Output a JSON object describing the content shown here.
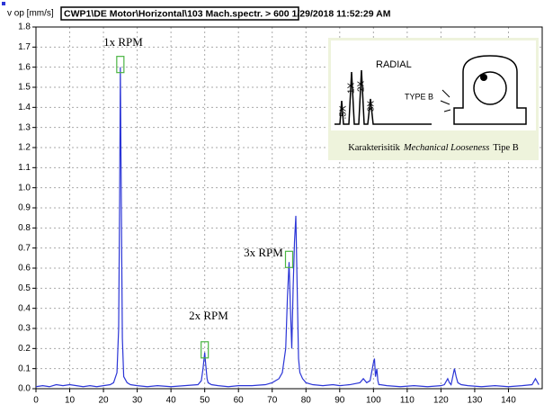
{
  "chart_data": {
    "type": "line",
    "title": "CWP1\\DE Motor\\Horizontal\\103 Mach.spectr. > 600 1/29/2018 11:52:29 AM",
    "ylabel": "v op [mm/s]",
    "color": "#2b35d6",
    "grid": true,
    "xlim": [
      0,
      150
    ],
    "ylim": [
      0,
      1.8
    ],
    "xticks": [
      0,
      10,
      20,
      30,
      40,
      50,
      60,
      70,
      80,
      90,
      100,
      110,
      120,
      130,
      140
    ],
    "yticks": [
      {
        "value": 0,
        "label": "0.0"
      },
      0.1,
      0.2,
      0.3,
      0.4,
      0.5,
      0.6,
      0.7,
      0.8,
      0.9,
      {
        "value": 1,
        "label": "1.0"
      },
      1.1,
      1.2,
      1.3,
      1.4,
      1.5,
      1.6,
      1.7,
      1.8
    ],
    "x": [
      0,
      2,
      4,
      6,
      8,
      10,
      12,
      14,
      16,
      18,
      20,
      22,
      23,
      24,
      24.5,
      24.8,
      25,
      25.3,
      25.6,
      26,
      27,
      28,
      30,
      33,
      36,
      40,
      44,
      48,
      49,
      49.5,
      50,
      50.3,
      50.7,
      51,
      52,
      54,
      57,
      60,
      64,
      68,
      70,
      72,
      73,
      74,
      74.5,
      75,
      75.4,
      75.8,
      76.2,
      76.6,
      77,
      77.4,
      77.8,
      78.2,
      79,
      80,
      82,
      85,
      88,
      90,
      93,
      96,
      97,
      98,
      99,
      100,
      100.3,
      100.6,
      101,
      101.3,
      101.6,
      102,
      104,
      108,
      112,
      116,
      120,
      121,
      122,
      122.5,
      123,
      124,
      124.5,
      125,
      126,
      128,
      132,
      136,
      140,
      144,
      147,
      148,
      149
    ],
    "values": [
      0.01,
      0.015,
      0.01,
      0.02,
      0.015,
      0.02,
      0.015,
      0.01,
      0.015,
      0.01,
      0.015,
      0.02,
      0.03,
      0.08,
      0.3,
      0.95,
      1.6,
      0.9,
      0.25,
      0.06,
      0.03,
      0.02,
      0.015,
      0.01,
      0.015,
      0.01,
      0.015,
      0.02,
      0.04,
      0.1,
      0.18,
      0.12,
      0.05,
      0.03,
      0.02,
      0.015,
      0.01,
      0.015,
      0.015,
      0.02,
      0.03,
      0.05,
      0.08,
      0.2,
      0.45,
      0.63,
      0.4,
      0.2,
      0.5,
      0.73,
      0.86,
      0.5,
      0.15,
      0.08,
      0.05,
      0.03,
      0.02,
      0.015,
      0.02,
      0.015,
      0.02,
      0.03,
      0.05,
      0.03,
      0.04,
      0.13,
      0.15,
      0.06,
      0.1,
      0.04,
      0.02,
      0.02,
      0.015,
      0.01,
      0.015,
      0.01,
      0.015,
      0.02,
      0.05,
      0.03,
      0.02,
      0.1,
      0.06,
      0.03,
      0.02,
      0.015,
      0.01,
      0.015,
      0.01,
      0.015,
      0.02,
      0.05,
      0.02
    ],
    "annotations": [
      "1x RPM",
      "2x RPM",
      "3x RPM"
    ],
    "inset": {
      "caption_prefix": "Karakterisitik",
      "caption_italic": "Mechanical Looseness",
      "caption_suffix": "Tipe B",
      "labels": [
        "RADIAL",
        "TYPE B",
        ".5X",
        "1X",
        "2X",
        "3X"
      ]
    }
  }
}
